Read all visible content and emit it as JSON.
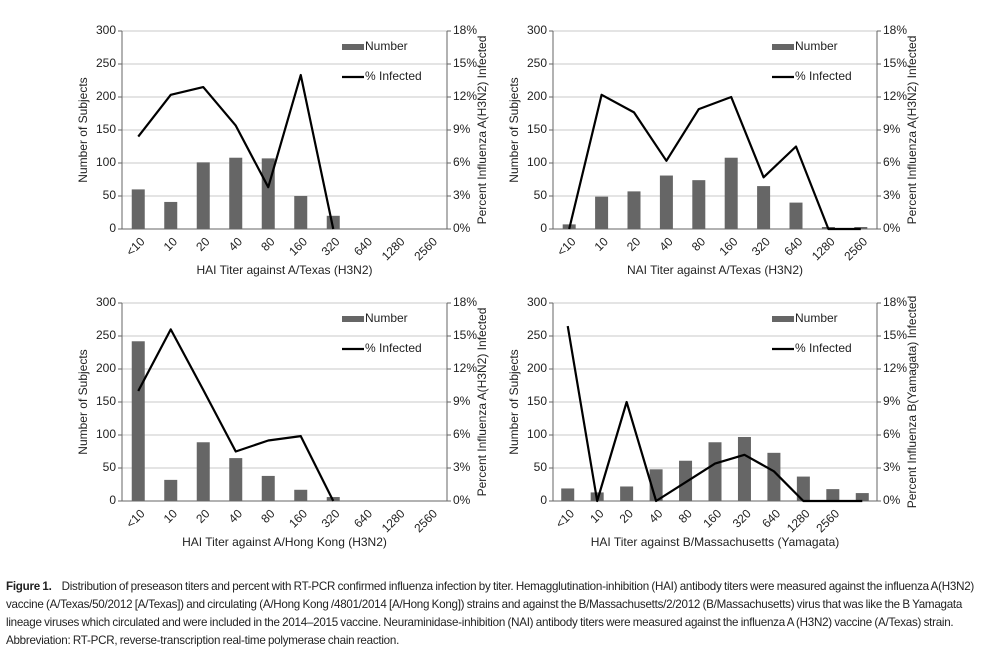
{
  "chart_data": [
    {
      "type": "bar_line",
      "x_label": "HAI Titer against A/Texas (H3N2)",
      "y_label": "Number of Subjects",
      "y2_label": "Percent Influenza A(H3N2) Infected",
      "legend": "upper right",
      "categories": [
        "<10",
        "10",
        "20",
        "40",
        "80",
        "160",
        "320",
        "640",
        "1280",
        "2560"
      ],
      "series": [
        {
          "name": "Number",
          "color": "#666666",
          "values": [
            60,
            41,
            101,
            108,
            107,
            50,
            20,
            0,
            0,
            0
          ]
        },
        {
          "name": "% Infected",
          "color": "#000000",
          "axis": "y2",
          "values": [
            8.4,
            12.2,
            12.9,
            9.4,
            3.8,
            14.0,
            0,
            null,
            null,
            null
          ]
        }
      ],
      "ylim": [
        0,
        300
      ],
      "yticks": [
        0,
        50,
        100,
        150,
        200,
        250,
        300
      ],
      "y2lim": [
        0,
        18
      ],
      "y2ticks": [
        {
          "value": 0,
          "label": "0%"
        },
        {
          "value": 3,
          "label": "3%"
        },
        {
          "value": 6,
          "label": "6%"
        },
        {
          "value": 9,
          "label": "9%"
        },
        {
          "value": 12,
          "label": "12%"
        },
        {
          "value": 15,
          "label": "15%"
        },
        {
          "value": 18,
          "label": "18%"
        }
      ],
      "grid": true
    },
    {
      "type": "bar_line",
      "x_label": "NAI Titer against A/Texas (H3N2)",
      "y_label": "Number of Subjects",
      "y2_label": "Percent Influenza A(H3N2) Infected",
      "legend": "upper right",
      "categories": [
        "<10",
        "10",
        "20",
        "40",
        "80",
        "160",
        "320",
        "640",
        "1280",
        "2560"
      ],
      "series": [
        {
          "name": "Number",
          "color": "#666666",
          "values": [
            7,
            49,
            57,
            81,
            74,
            108,
            65,
            40,
            3,
            3
          ]
        },
        {
          "name": "% Infected",
          "color": "#000000",
          "axis": "y2",
          "values": [
            0,
            12.2,
            10.6,
            6.2,
            10.9,
            12.0,
            4.7,
            7.5,
            0,
            0
          ]
        }
      ],
      "ylim": [
        0,
        300
      ],
      "yticks": [
        0,
        50,
        100,
        150,
        200,
        250,
        300
      ],
      "y2lim": [
        0,
        18
      ],
      "y2ticks": [
        {
          "value": 0,
          "label": "0%"
        },
        {
          "value": 3,
          "label": "3%"
        },
        {
          "value": 6,
          "label": "6%"
        },
        {
          "value": 9,
          "label": "9%"
        },
        {
          "value": 12,
          "label": "12%"
        },
        {
          "value": 15,
          "label": "15%"
        },
        {
          "value": 18,
          "label": "18%"
        }
      ],
      "grid": true
    },
    {
      "type": "bar_line",
      "x_label": "HAI Titer against A/Hong Kong (H3N2)",
      "y_label": "Number of Subjects",
      "y2_label": "Percent Influenza A(H3N2) Infected",
      "legend": "upper right",
      "categories": [
        "<10",
        "10",
        "20",
        "40",
        "80",
        "160",
        "320",
        "640",
        "1280",
        "2560"
      ],
      "series": [
        {
          "name": "Number",
          "color": "#666666",
          "values": [
            242,
            32,
            89,
            65,
            38,
            17,
            6,
            0,
            0,
            0
          ]
        },
        {
          "name": "% Infected",
          "color": "#000000",
          "axis": "y2",
          "values": [
            10.0,
            15.6,
            10.1,
            4.5,
            5.5,
            5.9,
            0,
            null,
            null,
            null
          ]
        }
      ],
      "ylim": [
        0,
        300
      ],
      "yticks": [
        0,
        50,
        100,
        150,
        200,
        250,
        300
      ],
      "y2lim": [
        0,
        18
      ],
      "y2ticks": [
        {
          "value": 0,
          "label": "0%"
        },
        {
          "value": 3,
          "label": "3%"
        },
        {
          "value": 6,
          "label": "6%"
        },
        {
          "value": 9,
          "label": "9%"
        },
        {
          "value": 12,
          "label": "12%"
        },
        {
          "value": 15,
          "label": "15%"
        },
        {
          "value": 18,
          "label": "18%"
        }
      ],
      "grid": true
    },
    {
      "type": "bar_line",
      "x_label": "HAI Titer against B/Massachusetts (Yamagata)",
      "y_label": "Number of Subjects",
      "y2_label": "Percent Influenza B(Yamagata) Infected",
      "legend": "upper right",
      "categories": [
        "<10",
        "10",
        "20",
        "40",
        "80",
        "160",
        "320",
        "640",
        "1280",
        "2560",
        null
      ],
      "series": [
        {
          "name": "Number",
          "color": "#666666",
          "values": [
            19,
            13,
            22,
            48,
            61,
            89,
            97,
            73,
            37,
            18,
            12
          ]
        },
        {
          "name": "% Infected",
          "color": "#000000",
          "axis": "y2",
          "values": [
            15.9,
            0,
            9.0,
            0,
            1.7,
            3.4,
            4.2,
            2.7,
            0,
            0,
            0
          ]
        }
      ],
      "ylim": [
        0,
        300
      ],
      "yticks": [
        0,
        50,
        100,
        150,
        200,
        250,
        300
      ],
      "y2lim": [
        0,
        18
      ],
      "y2ticks": [
        {
          "value": 0,
          "label": "0%"
        },
        {
          "value": 3,
          "label": "3%"
        },
        {
          "value": 6,
          "label": "6%"
        },
        {
          "value": 9,
          "label": "9%"
        },
        {
          "value": 12,
          "label": "12%"
        },
        {
          "value": 15,
          "label": "15%"
        },
        {
          "value": 18,
          "label": "18%"
        }
      ],
      "grid": true
    }
  ],
  "caption": {
    "label": "Figure 1.",
    "text": "Distribution of preseason titers and percent with RT-PCR confirmed influenza infection by titer. Hemagglutination-inhibition (HAI) antibody titers were measured against the influenza A(H3N2) vaccine (A/Texas/50/2012 [A/Texas]) and circulating (A/Hong Kong /4801/2014 [A/Hong Kong]) strains and against the B/Massachusetts/2/2012 (B/Massachusetts) virus that was like the B Yamagata lineage viruses which circulated and were included in the 2014–2015 vaccine. Neuraminidase-inhibition (NAI) antibody titers were measured against the influenza A (H3N2) vaccine (A/Texas) strain. Abbreviation: RT-PCR, reverse-transcription real-time polymerase chain reaction."
  }
}
